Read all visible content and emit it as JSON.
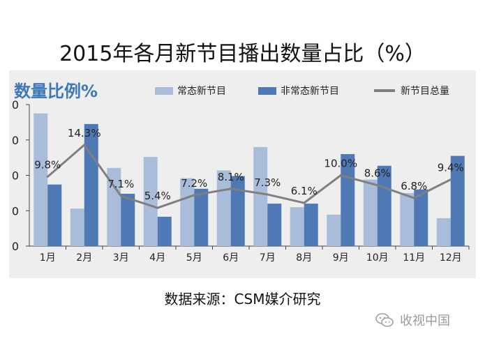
{
  "title": "2015年各月新节目播出数量占比（%）",
  "source": "数据来源：CSM媒介研究",
  "watermark": {
    "text": "收视中国",
    "icon": "wechat-icon"
  },
  "colors": {
    "series1": "#a9bddb",
    "series2": "#4e79b5",
    "line": "#7f7f7f",
    "heading": "#3e78b8",
    "panel": "#eeeeee"
  },
  "chart_data": {
    "type": "bar",
    "heading": "数量比例%",
    "categories": [
      "1月",
      "2月",
      "3月",
      "4月",
      "5月",
      "6月",
      "7月",
      "8月",
      "9月",
      "10月",
      "11月",
      "12月"
    ],
    "yticks": [
      "0",
      "0",
      "0",
      "0",
      "0"
    ],
    "series": [
      {
        "name": "常态新节目",
        "type": "bar",
        "values": [
          37.5,
          10.6,
          22.1,
          25.2,
          19.2,
          21.4,
          28.0,
          11.0,
          8.9,
          18.8,
          15.0,
          7.9
        ]
      },
      {
        "name": "非常态新节目",
        "type": "bar",
        "values": [
          17.4,
          34.5,
          14.8,
          8.3,
          16.2,
          19.8,
          12.0,
          12.0,
          26.0,
          22.7,
          16.0,
          25.5
        ]
      },
      {
        "name": "新节目总量",
        "type": "line",
        "values": [
          9.8,
          14.3,
          7.1,
          5.4,
          7.2,
          8.1,
          7.3,
          6.1,
          10.0,
          8.6,
          6.8,
          9.4
        ],
        "labels": [
          "9.8%",
          "14.3%",
          "7.1%",
          "5.4%",
          "7.2%",
          "8.1%",
          "7.3%",
          "6.1%",
          "10.0%",
          "8.6%",
          "6.8%",
          "9.4%"
        ]
      }
    ],
    "bar_ylim": [
      0,
      40
    ],
    "line_ylim": [
      0,
      20
    ],
    "legend_position": "top-right",
    "grid": false
  }
}
